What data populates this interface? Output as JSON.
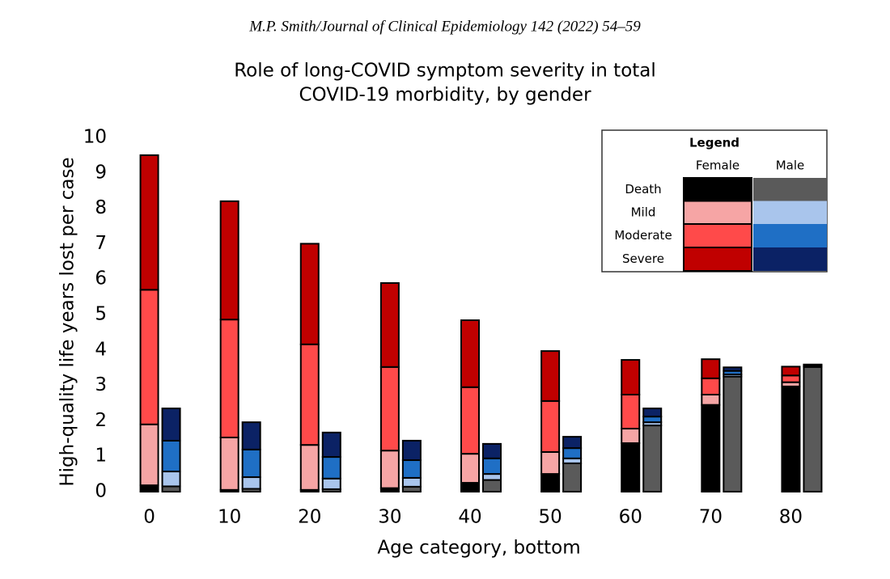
{
  "header": "M.P. Smith/Journal of Clinical Epidemiology 142 (2022) 54–59",
  "chart_data": {
    "type": "grouped-stacked-bar",
    "title": [
      "Role of long-COVID symptom severity in total",
      "COVID-19 morbidity, by gender"
    ],
    "x_label": "Age category, bottom",
    "y_label": "High-quality life years lost per case",
    "categories": [
      "0",
      "10",
      "20",
      "30",
      "40",
      "50",
      "60",
      "70",
      "80"
    ],
    "ylim": [
      0,
      10
    ],
    "yticks": [
      0,
      1,
      2,
      3,
      4,
      5,
      6,
      7,
      8,
      9,
      10
    ],
    "legend_title": "Legend",
    "stack_names": [
      "Death",
      "Mild",
      "Moderate",
      "Severe"
    ],
    "series": [
      {
        "name": "Female",
        "colors": [
          "#000000",
          "#f6a5a5",
          "#ff4a4a",
          "#c00000"
        ],
        "stacks": [
          [
            0.18,
            0.05,
            0.05,
            0.1,
            0.25,
            0.5,
            1.37,
            2.45,
            2.97
          ],
          [
            1.72,
            1.48,
            1.27,
            1.06,
            0.82,
            0.62,
            0.41,
            0.29,
            0.12
          ],
          [
            3.8,
            3.33,
            2.84,
            2.36,
            1.88,
            1.44,
            0.96,
            0.46,
            0.19
          ],
          [
            3.8,
            3.34,
            2.84,
            2.37,
            1.89,
            1.41,
            0.98,
            0.54,
            0.25
          ]
        ]
      },
      {
        "name": "Male",
        "colors": [
          "#5a5a5a",
          "#a9c5ec",
          "#1f6fc5",
          "#0b2265"
        ],
        "stacks": [
          [
            0.15,
            0.08,
            0.07,
            0.14,
            0.33,
            0.8,
            1.87,
            3.25,
            3.52
          ],
          [
            0.42,
            0.33,
            0.3,
            0.25,
            0.17,
            0.14,
            0.09,
            0.06,
            0.02
          ],
          [
            0.87,
            0.78,
            0.61,
            0.5,
            0.44,
            0.29,
            0.16,
            0.1,
            0.03
          ],
          [
            0.91,
            0.77,
            0.69,
            0.55,
            0.41,
            0.32,
            0.23,
            0.1,
            0.02
          ]
        ]
      }
    ]
  }
}
